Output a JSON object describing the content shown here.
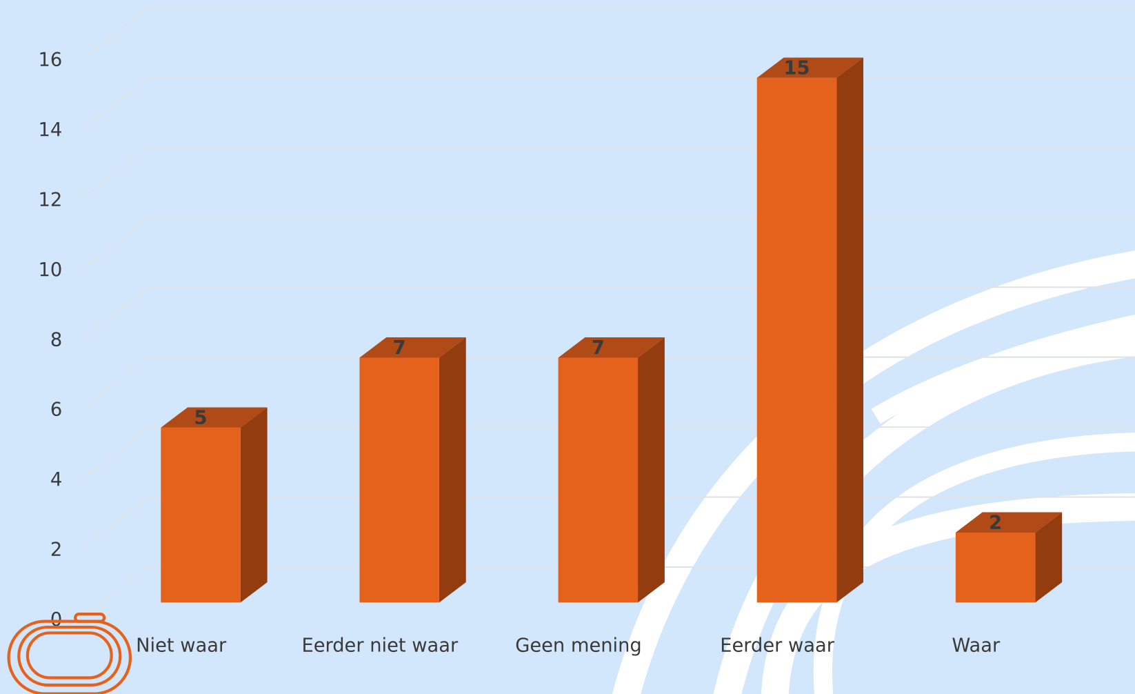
{
  "chart_data": {
    "type": "bar3d",
    "categories": [
      "Niet waar",
      "Eerder niet waar",
      "Geen mening",
      "Eerder waar",
      "Waar"
    ],
    "values": [
      5,
      7,
      7,
      15,
      2
    ],
    "ylim": [
      0,
      16
    ],
    "yticks": [
      0,
      2,
      4,
      6,
      8,
      10,
      12,
      14,
      16
    ],
    "grid": true,
    "color": "#e5621c",
    "side_color": "#923c10",
    "top_color": "#b04a17"
  }
}
